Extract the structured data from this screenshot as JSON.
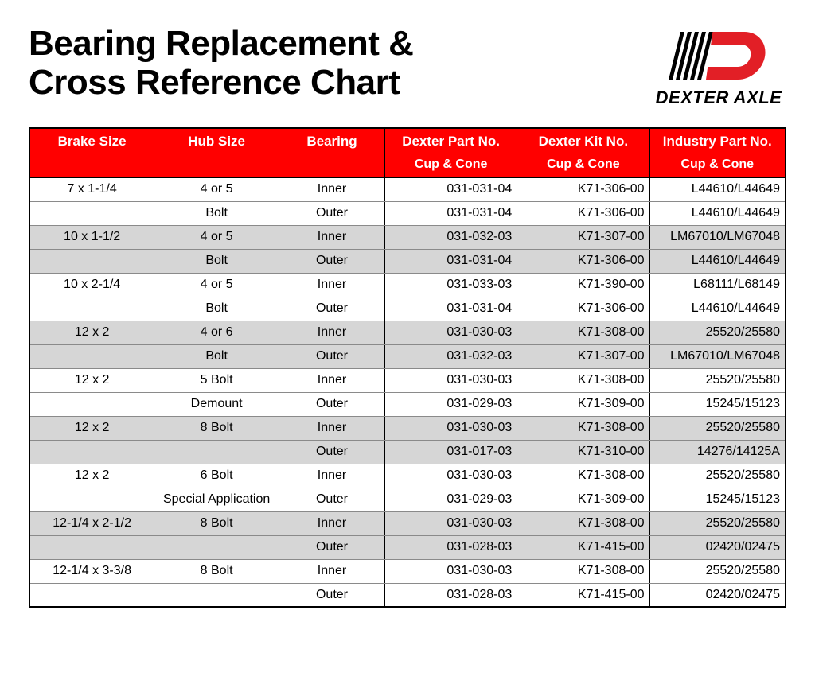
{
  "title_line1": "Bearing Replacement &",
  "title_line2": "Cross Reference Chart",
  "logo_text": "DEXTER AXLE",
  "logo": {
    "red": "#e21f26",
    "black": "#000000"
  },
  "table": {
    "header_bg": "#ff0000",
    "header_fg": "#ffffff",
    "shade_bg": "#d6d6d6",
    "columns": [
      {
        "line1": "Brake Size",
        "line2": ""
      },
      {
        "line1": "Hub Size",
        "line2": ""
      },
      {
        "line1": "Bearing",
        "line2": ""
      },
      {
        "line1": "Dexter Part No.",
        "line2": "Cup & Cone"
      },
      {
        "line1": "Dexter Kit No.",
        "line2": "Cup & Cone"
      },
      {
        "line1": "Industry Part No.",
        "line2": "Cup & Cone"
      }
    ],
    "rows": [
      {
        "shade": false,
        "cells": [
          "7 x 1-1/4",
          "4 or 5",
          "Inner",
          "031-031-04",
          "K71-306-00",
          "L44610/L44649"
        ]
      },
      {
        "shade": false,
        "cells": [
          "",
          "Bolt",
          "Outer",
          "031-031-04",
          "K71-306-00",
          "L44610/L44649"
        ]
      },
      {
        "shade": true,
        "cells": [
          "10 x 1-1/2",
          "4 or 5",
          "Inner",
          "031-032-03",
          "K71-307-00",
          "LM67010/LM67048"
        ]
      },
      {
        "shade": true,
        "cells": [
          "",
          "Bolt",
          "Outer",
          "031-031-04",
          "K71-306-00",
          "L44610/L44649"
        ]
      },
      {
        "shade": false,
        "cells": [
          "10 x 2-1/4",
          "4 or 5",
          "Inner",
          "031-033-03",
          "K71-390-00",
          "L68111/L68149"
        ]
      },
      {
        "shade": false,
        "cells": [
          "",
          "Bolt",
          "Outer",
          "031-031-04",
          "K71-306-00",
          "L44610/L44649"
        ]
      },
      {
        "shade": true,
        "cells": [
          "12 x 2",
          "4 or 6",
          "Inner",
          "031-030-03",
          "K71-308-00",
          "25520/25580"
        ]
      },
      {
        "shade": true,
        "cells": [
          "",
          "Bolt",
          "Outer",
          "031-032-03",
          "K71-307-00",
          "LM67010/LM67048"
        ]
      },
      {
        "shade": false,
        "cells": [
          "12 x 2",
          "5 Bolt",
          "Inner",
          "031-030-03",
          "K71-308-00",
          "25520/25580"
        ]
      },
      {
        "shade": false,
        "cells": [
          "",
          "Demount",
          "Outer",
          "031-029-03",
          "K71-309-00",
          "15245/15123"
        ]
      },
      {
        "shade": true,
        "cells": [
          "12 x 2",
          "8 Bolt",
          "Inner",
          "031-030-03",
          "K71-308-00",
          "25520/25580"
        ]
      },
      {
        "shade": true,
        "cells": [
          "",
          "",
          "Outer",
          "031-017-03",
          "K71-310-00",
          "14276/14125A"
        ]
      },
      {
        "shade": false,
        "cells": [
          "12 x 2",
          "6 Bolt",
          "Inner",
          "031-030-03",
          "K71-308-00",
          "25520/25580"
        ]
      },
      {
        "shade": false,
        "cells": [
          "",
          "Special Application",
          "Outer",
          "031-029-03",
          "K71-309-00",
          "15245/15123"
        ]
      },
      {
        "shade": true,
        "cells": [
          "12-1/4 x 2-1/2",
          "8 Bolt",
          "Inner",
          "031-030-03",
          "K71-308-00",
          "25520/25580"
        ]
      },
      {
        "shade": true,
        "cells": [
          "",
          "",
          "Outer",
          "031-028-03",
          "K71-415-00",
          "02420/02475"
        ]
      },
      {
        "shade": false,
        "cells": [
          "12-1/4 x 3-3/8",
          "8 Bolt",
          "Inner",
          "031-030-03",
          "K71-308-00",
          "25520/25580"
        ]
      },
      {
        "shade": false,
        "cells": [
          "",
          "",
          "Outer",
          "031-028-03",
          "K71-415-00",
          "02420/02475"
        ]
      }
    ]
  }
}
